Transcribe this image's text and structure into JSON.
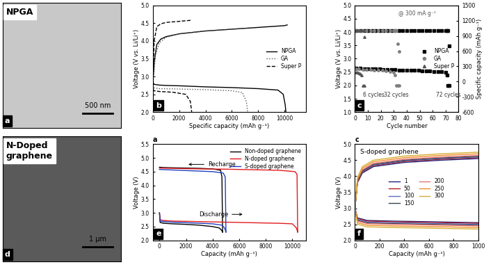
{
  "chart_data": [
    {
      "type": "image",
      "panel": "a",
      "caption": "NPGA",
      "scale_bar": "500 nm"
    },
    {
      "type": "line",
      "panel": "b",
      "xlabel": "Specific capacity (mAh g⁻¹)",
      "ylabel": "Voltage (V vs. Li/Li⁺)",
      "xlim": [
        0,
        11600
      ],
      "xticks": [
        0,
        2000,
        4000,
        6000,
        8000,
        10000
      ],
      "ylim": [
        2.0,
        5.0
      ],
      "yticks": [
        2.0,
        2.5,
        3.0,
        3.5,
        4.0,
        4.5,
        5.0
      ],
      "legend": "center right",
      "series": [
        {
          "name": "NPGA",
          "color": "#000000",
          "line_style": "solid",
          "x": [
            0,
            100,
            500,
            1000,
            2000,
            4000,
            6000,
            8000,
            9500,
            9900,
            10050,
            10100,
            null,
            0,
            100,
            300,
            600,
            1000,
            2000,
            4000,
            6000,
            8000,
            10000,
            10200
          ],
          "values": [
            2.85,
            2.78,
            2.76,
            2.75,
            2.74,
            2.71,
            2.69,
            2.66,
            2.62,
            2.5,
            2.2,
            2.0,
            null,
            2.8,
            3.4,
            3.9,
            4.05,
            4.12,
            4.2,
            4.28,
            4.33,
            4.38,
            4.43,
            4.45
          ]
        },
        {
          "name": "GA",
          "color": "#555555",
          "line_style": "dotted",
          "x": [
            0,
            100,
            500,
            2000,
            4000,
            6000,
            6800,
            7100,
            7200,
            null,
            0,
            200,
            500,
            1000,
            2000,
            4000,
            6000,
            7200
          ],
          "values": [
            2.75,
            2.68,
            2.66,
            2.65,
            2.63,
            2.6,
            2.55,
            2.3,
            2.0,
            null,
            2.7,
            3.6,
            3.95,
            4.1,
            4.2,
            4.28,
            4.33,
            4.36
          ]
        },
        {
          "name": "Super P",
          "color": "#000000",
          "line_style": "dashed",
          "x": [
            0,
            100,
            500,
            1500,
            2500,
            2850,
            2950,
            null,
            0,
            100,
            300,
            600,
            1000,
            2000,
            2900
          ],
          "values": [
            2.65,
            2.6,
            2.58,
            2.56,
            2.5,
            2.3,
            2.0,
            null,
            2.7,
            4.0,
            4.4,
            4.48,
            4.52,
            4.55,
            4.58
          ]
        }
      ]
    },
    {
      "type": "scatter",
      "panel": "c",
      "xlabel": "Cycle number",
      "ylabel": "Voltage (V vs. Li/Li⁺)",
      "y2label": "Specific capacity (mAh g⁻¹)",
      "xlim": [
        0,
        80
      ],
      "xticks": [
        0,
        10,
        20,
        30,
        40,
        50,
        60,
        70,
        80
      ],
      "ylim": [
        1.0,
        5.0
      ],
      "yticks": [
        1.0,
        1.5,
        2.0,
        2.5,
        3.0,
        3.5,
        4.0,
        4.5,
        5.0
      ],
      "y2lim": [
        -600,
        1500
      ],
      "y2ticks": [
        -600,
        -300,
        0,
        300,
        600,
        900,
        1200,
        1500
      ],
      "legend": "center right",
      "annotations": [
        {
          "text": "@ 300 mA g⁻¹"
        },
        {
          "text": "6 cycles",
          "x": 6
        },
        {
          "text": "32 cycles",
          "x": 32
        },
        {
          "text": "72 cycles",
          "x": 72
        }
      ],
      "series": [
        {
          "name": "NPGA",
          "color": "#000000",
          "marker": "square",
          "line_style": "none",
          "x": [
            1,
            4,
            7,
            10,
            13,
            16,
            19,
            22,
            25,
            28,
            31,
            34,
            37,
            40,
            43,
            46,
            49,
            52,
            55,
            58,
            61,
            64,
            67,
            70,
            71,
            72,
            73
          ],
          "values": [
            2.65,
            2.64,
            2.63,
            2.62,
            2.62,
            2.61,
            2.61,
            2.6,
            2.6,
            2.59,
            2.59,
            2.58,
            2.58,
            2.57,
            2.57,
            2.56,
            2.56,
            2.55,
            2.55,
            2.54,
            2.53,
            2.52,
            2.51,
            2.48,
            2.4,
            2.0,
            2.0
          ]
        },
        {
          "name": "GA",
          "color": "#808080",
          "marker": "circle",
          "line_style": "none",
          "x": [
            1,
            3,
            6,
            9,
            12,
            15,
            18,
            21,
            24,
            27,
            30,
            31,
            32,
            33,
            34
          ],
          "values": [
            2.62,
            2.61,
            2.6,
            2.6,
            2.59,
            2.58,
            2.57,
            2.56,
            2.55,
            2.53,
            2.5,
            2.4,
            2.0,
            2.0,
            2.0
          ]
        },
        {
          "name": "Super P",
          "color": "#555555",
          "marker": "triangle",
          "line_style": "none",
          "x": [
            1,
            2,
            3,
            4,
            5,
            6,
            7
          ],
          "values": [
            2.5,
            2.48,
            2.46,
            2.43,
            2.38,
            2.0,
            2.0
          ]
        },
        {
          "name": "NPGA",
          "color": "#000000",
          "marker": "square",
          "line_style": "none",
          "axis": "y2",
          "x": [
            1,
            4,
            7,
            10,
            13,
            16,
            19,
            22,
            25,
            28,
            31,
            34,
            37,
            40,
            43,
            46,
            49,
            52,
            55,
            58,
            61,
            64,
            67,
            70,
            71,
            72,
            73
          ],
          "values": [
            1000,
            1000,
            1000,
            1000,
            1000,
            1000,
            1000,
            1000,
            1000,
            1000,
            1000,
            1000,
            1000,
            1000,
            1000,
            1000,
            1000,
            1000,
            1000,
            1000,
            1000,
            1000,
            1000,
            1000,
            1000,
            1000,
            700
          ]
        },
        {
          "name": "GA",
          "color": "#808080",
          "marker": "circle",
          "line_style": "none",
          "axis": "y2",
          "x": [
            1,
            3,
            6,
            9,
            12,
            15,
            18,
            21,
            24,
            27,
            30,
            31,
            32,
            33,
            34
          ],
          "values": [
            1000,
            1000,
            1000,
            1000,
            1000,
            1000,
            1000,
            1000,
            1000,
            1000,
            1000,
            1000,
            1000,
            750,
            600
          ]
        },
        {
          "name": "Super P",
          "color": "#555555",
          "marker": "triangle",
          "line_style": "none",
          "axis": "y2",
          "x": [
            1,
            2,
            3,
            4,
            5,
            6,
            7
          ],
          "values": [
            1000,
            1000,
            1000,
            1000,
            1000,
            1000,
            880
          ]
        }
      ]
    },
    {
      "type": "image",
      "panel": "d",
      "caption": "N-Doped\ngraphene",
      "scale_bar": "1 μm"
    },
    {
      "type": "line",
      "panel": "e",
      "inner_label": "a",
      "xlabel": "Capacity (mAh g⁻¹)",
      "ylabel": "Voltage (V)",
      "xlim": [
        -500,
        11000
      ],
      "xticks": [
        0,
        2000,
        4000,
        6000,
        8000,
        10000
      ],
      "ylim": [
        2.0,
        5.5
      ],
      "yticks": [
        2.0,
        2.5,
        3.0,
        3.5,
        4.0,
        4.5,
        5.0,
        5.5
      ],
      "legend": "upper right",
      "annotations": [
        {
          "text": "Recharge"
        },
        {
          "text": "Discharge"
        }
      ],
      "series": [
        {
          "name": "Non-doped graphene",
          "color": "#000000",
          "line_style": "solid",
          "x": [
            0,
            50,
            300,
            1000,
            2000,
            3000,
            4000,
            4500,
            4700,
            4750,
            null,
            4750,
            4700,
            4600,
            4000,
            3000,
            2000,
            1000,
            300,
            0
          ],
          "values": [
            3.0,
            2.65,
            2.62,
            2.6,
            2.58,
            2.55,
            2.5,
            2.45,
            2.35,
            2.3,
            null,
            2.3,
            4.3,
            4.55,
            4.6,
            4.62,
            4.63,
            4.64,
            4.65,
            4.66
          ]
        },
        {
          "name": "N-doped graphene",
          "color": "#e31a1c",
          "line_style": "solid",
          "x": [
            0,
            50,
            300,
            1000,
            3000,
            5000,
            7000,
            9000,
            10000,
            10300,
            10400,
            null,
            10400,
            10350,
            10200,
            9000,
            7000,
            5000,
            3000,
            1000,
            0
          ],
          "values": [
            3.0,
            2.75,
            2.72,
            2.7,
            2.68,
            2.66,
            2.64,
            2.62,
            2.6,
            2.45,
            2.3,
            null,
            2.3,
            4.4,
            4.5,
            4.55,
            4.57,
            4.59,
            4.6,
            4.62,
            4.63
          ]
        },
        {
          "name": "S-doped graphene",
          "color": "#1f3fbf",
          "line_style": "solid",
          "x": [
            0,
            50,
            300,
            1000,
            2000,
            3000,
            4000,
            4700,
            4900,
            5000,
            null,
            5000,
            4950,
            4800,
            4000,
            3000,
            2000,
            1000,
            0
          ],
          "values": [
            3.0,
            2.7,
            2.68,
            2.66,
            2.64,
            2.62,
            2.6,
            2.55,
            2.45,
            2.3,
            null,
            2.3,
            4.3,
            4.45,
            4.5,
            4.52,
            4.54,
            4.56,
            4.58
          ]
        }
      ]
    },
    {
      "type": "line",
      "panel": "f",
      "inner_label": "c",
      "title": "S-doped graphene",
      "xlabel": "Capacity (mAh g⁻¹)",
      "ylabel": "Voltage (V)",
      "xlim": [
        0,
        1000
      ],
      "xticks": [
        0,
        200,
        400,
        600,
        800,
        1000
      ],
      "ylim": [
        2.0,
        5.0
      ],
      "yticks": [
        2.0,
        2.5,
        3.0,
        3.5,
        4.0,
        4.5,
        5.0
      ],
      "legend": "center",
      "series": [
        {
          "name": "1",
          "color": "#1a237e",
          "line_style": "solid",
          "x": [
            0,
            20,
            100,
            300,
            600,
            1000,
            null,
            0,
            20,
            60,
            150,
            400,
            700,
            1000
          ],
          "values": [
            3.0,
            2.7,
            2.62,
            2.6,
            2.58,
            2.55,
            null,
            3.0,
            3.8,
            4.1,
            4.3,
            4.43,
            4.5,
            4.55
          ]
        },
        {
          "name": "50",
          "color": "#b71c1c",
          "line_style": "solid",
          "x": [
            0,
            20,
            100,
            300,
            600,
            1000,
            null,
            0,
            20,
            60,
            150,
            400,
            700,
            1000
          ],
          "values": [
            3.0,
            2.68,
            2.6,
            2.58,
            2.56,
            2.53,
            null,
            3.0,
            3.8,
            4.13,
            4.33,
            4.46,
            4.53,
            4.58
          ]
        },
        {
          "name": "100",
          "color": "#5c6bc0",
          "line_style": "solid",
          "x": [
            0,
            20,
            100,
            300,
            600,
            1000,
            null,
            0,
            20,
            60,
            150,
            400,
            700,
            1000
          ],
          "values": [
            3.0,
            2.65,
            2.57,
            2.55,
            2.53,
            2.5,
            null,
            3.0,
            3.85,
            4.15,
            4.35,
            4.48,
            4.55,
            4.6
          ]
        },
        {
          "name": "150",
          "color": "#37474f",
          "line_style": "solid",
          "x": [
            0,
            20,
            100,
            300,
            600,
            1000,
            null,
            0,
            20,
            60,
            150,
            400,
            700,
            1000
          ],
          "values": [
            3.0,
            2.62,
            2.54,
            2.52,
            2.5,
            2.47,
            null,
            3.0,
            3.85,
            4.17,
            4.37,
            4.5,
            4.57,
            4.62
          ]
        },
        {
          "name": "200",
          "color": "#e57373",
          "line_style": "solid",
          "x": [
            0,
            20,
            100,
            300,
            600,
            1000,
            null,
            0,
            20,
            60,
            150,
            400,
            700,
            1000
          ],
          "values": [
            3.0,
            2.6,
            2.52,
            2.5,
            2.48,
            2.45,
            null,
            3.0,
            3.9,
            4.2,
            4.4,
            4.53,
            4.6,
            4.65
          ]
        },
        {
          "name": "250",
          "color": "#ef8c2b",
          "line_style": "solid",
          "x": [
            0,
            20,
            100,
            300,
            600,
            1000,
            null,
            0,
            20,
            60,
            150,
            400,
            700,
            1000
          ],
          "values": [
            3.0,
            2.55,
            2.47,
            2.45,
            2.43,
            2.4,
            null,
            3.0,
            3.9,
            4.25,
            4.45,
            4.58,
            4.65,
            4.7
          ]
        },
        {
          "name": "300",
          "color": "#d4af37",
          "line_style": "solid",
          "x": [
            0,
            20,
            100,
            300,
            600,
            1000,
            null,
            0,
            20,
            60,
            150,
            400,
            700,
            1000
          ],
          "values": [
            3.0,
            2.5,
            2.42,
            2.4,
            2.38,
            2.35,
            null,
            3.0,
            3.95,
            4.3,
            4.5,
            4.63,
            4.7,
            4.75
          ]
        }
      ]
    }
  ]
}
